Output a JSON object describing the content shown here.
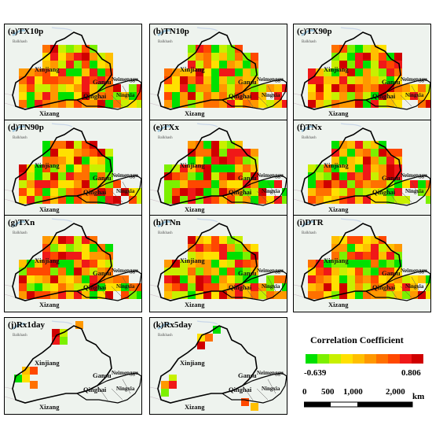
{
  "panels": [
    {
      "id": "a",
      "label": "(a)TX10p"
    },
    {
      "id": "b",
      "label": "(b)TN10p"
    },
    {
      "id": "c",
      "label": "(c)TX90p"
    },
    {
      "id": "d",
      "label": "(d)TN90p"
    },
    {
      "id": "e",
      "label": "(e)TXx"
    },
    {
      "id": "f",
      "label": "(f)TNx"
    },
    {
      "id": "g",
      "label": "(g)TXn"
    },
    {
      "id": "h",
      "label": "(h)TNn"
    },
    {
      "id": "i",
      "label": "(i)DTR"
    },
    {
      "id": "j",
      "label": "(j)Rx1day"
    },
    {
      "id": "k",
      "label": "(k)Rx5day"
    }
  ],
  "places": {
    "xinjiang": "Xinjiang",
    "gansu": "Gansu",
    "qinghai": "Qinghai",
    "xizang": "Xizang",
    "neimenggu": "Neimenggu",
    "ningxia": "Ningxia",
    "balkhash": "Balkhash"
  },
  "legend": {
    "title": "Correlation Coefficient",
    "min": "-0.639",
    "max": "0.806",
    "colors": [
      "#00e000",
      "#7cf000",
      "#c8f000",
      "#ffe000",
      "#ffbf00",
      "#ff9800",
      "#ff7000",
      "#ff4800",
      "#f01818",
      "#d00000"
    ]
  },
  "scale": {
    "ticks": [
      "0",
      "500",
      "1,000",
      "2,000"
    ],
    "unit": "km"
  }
}
